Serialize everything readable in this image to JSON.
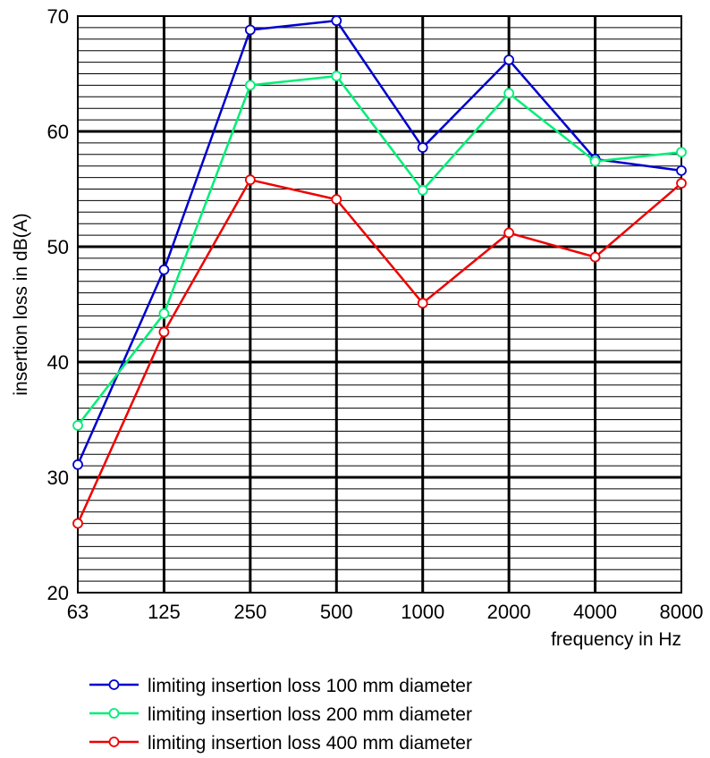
{
  "chart_data": {
    "type": "line",
    "xlabel": "frequency in Hz",
    "ylabel": "insertion loss in dB(A)",
    "categories": [
      "63",
      "125",
      "250",
      "500",
      "1000",
      "2000",
      "4000",
      "8000"
    ],
    "ylim": [
      20,
      70
    ],
    "yticks": [
      20,
      30,
      40,
      50,
      60,
      70
    ],
    "grid": true,
    "legend_position": "bottom",
    "series": [
      {
        "name": "limiting insertion loss 100 mm diameter",
        "color": "#0000cc",
        "values": [
          31.1,
          48.0,
          68.8,
          69.6,
          58.6,
          66.2,
          57.6,
          56.6
        ]
      },
      {
        "name": "limiting insertion loss 200 mm diameter",
        "color": "#00ee77",
        "values": [
          34.5,
          44.2,
          64.0,
          64.8,
          54.9,
          63.3,
          57.4,
          58.2
        ]
      },
      {
        "name": "limiting insertion loss 400 mm diameter",
        "color": "#ee0000",
        "values": [
          26.0,
          42.6,
          55.8,
          54.1,
          45.1,
          51.2,
          49.1,
          55.5
        ]
      }
    ]
  }
}
